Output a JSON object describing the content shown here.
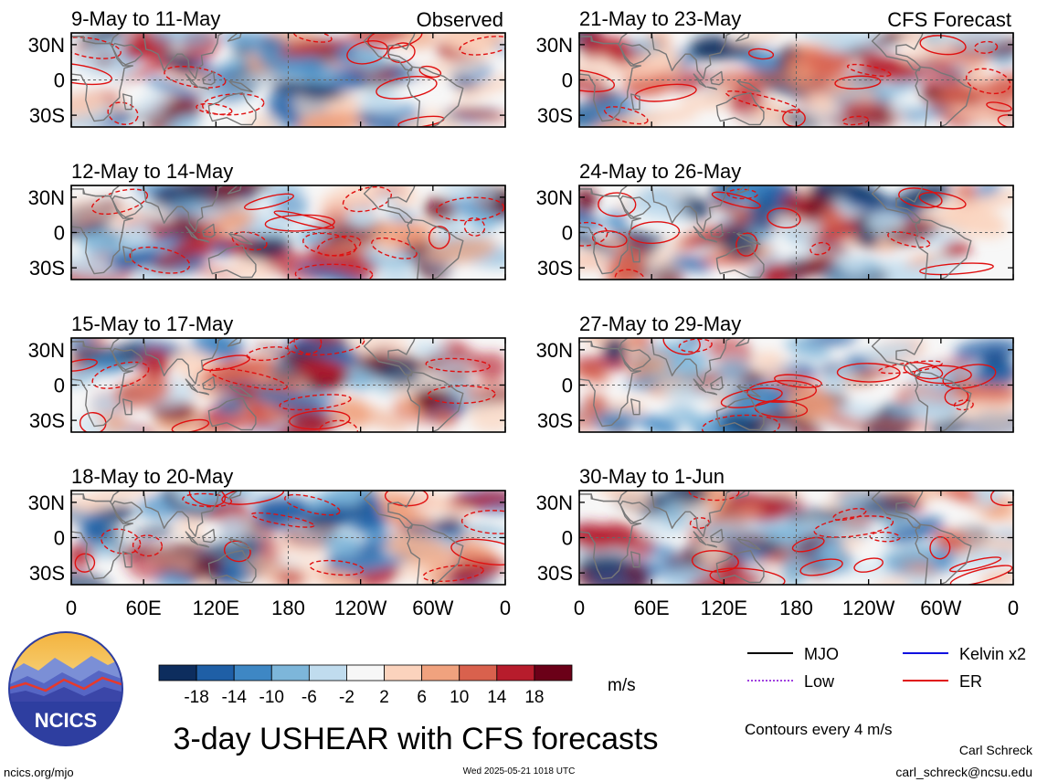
{
  "figure": {
    "title": "3-day USHEAR with CFS forecasts",
    "left_column_label": "Observed",
    "right_column_label": "CFS Forecast",
    "contour_note": "Contours every 4 m/s",
    "colorbar_unit": "m/s",
    "colorbar_ticks": [
      "-18",
      "-14",
      "-10",
      "-6",
      "-2",
      "2",
      "6",
      "10",
      "14",
      "18"
    ],
    "colorbar_colors": [
      "#0d2d5e",
      "#1f5fa6",
      "#3e87c4",
      "#7db6da",
      "#c0dcee",
      "#f7f7f7",
      "#fbd3bd",
      "#f0a27e",
      "#d9614d",
      "#b71c2c",
      "#6b0018"
    ],
    "lat_labels": [
      "30N",
      "0",
      "30S"
    ],
    "lon_labels": [
      "0",
      "60E",
      "120E",
      "180",
      "120W",
      "60W",
      "0"
    ]
  },
  "panels": [
    {
      "period": "9-May to 11-May",
      "column": "observed"
    },
    {
      "period": "12-May to 14-May",
      "column": "observed"
    },
    {
      "period": "15-May to 17-May",
      "column": "observed"
    },
    {
      "period": "18-May to 20-May",
      "column": "observed"
    },
    {
      "period": "21-May to 23-May",
      "column": "forecast"
    },
    {
      "period": "24-May to 26-May",
      "column": "forecast"
    },
    {
      "period": "27-May to 29-May",
      "column": "forecast"
    },
    {
      "period": "30-May to 1-Jun",
      "column": "forecast"
    }
  ],
  "legend": [
    {
      "label": "MJO",
      "color": "#000000",
      "style": "solid"
    },
    {
      "label": "Kelvin x2",
      "color": "#1010e0",
      "style": "solid"
    },
    {
      "label": "Low",
      "color": "#a040e0",
      "style": "dashed"
    },
    {
      "label": "ER",
      "color": "#e01010",
      "style": "solid"
    }
  ],
  "logo": {
    "text": "NCICS"
  },
  "footer": {
    "site": "ncics.org/mjo",
    "timestamp": "Wed 2025-05-21 1018 UTC",
    "author": "Carl Schreck",
    "email": "carl_schreck@ncsu.edu"
  }
}
